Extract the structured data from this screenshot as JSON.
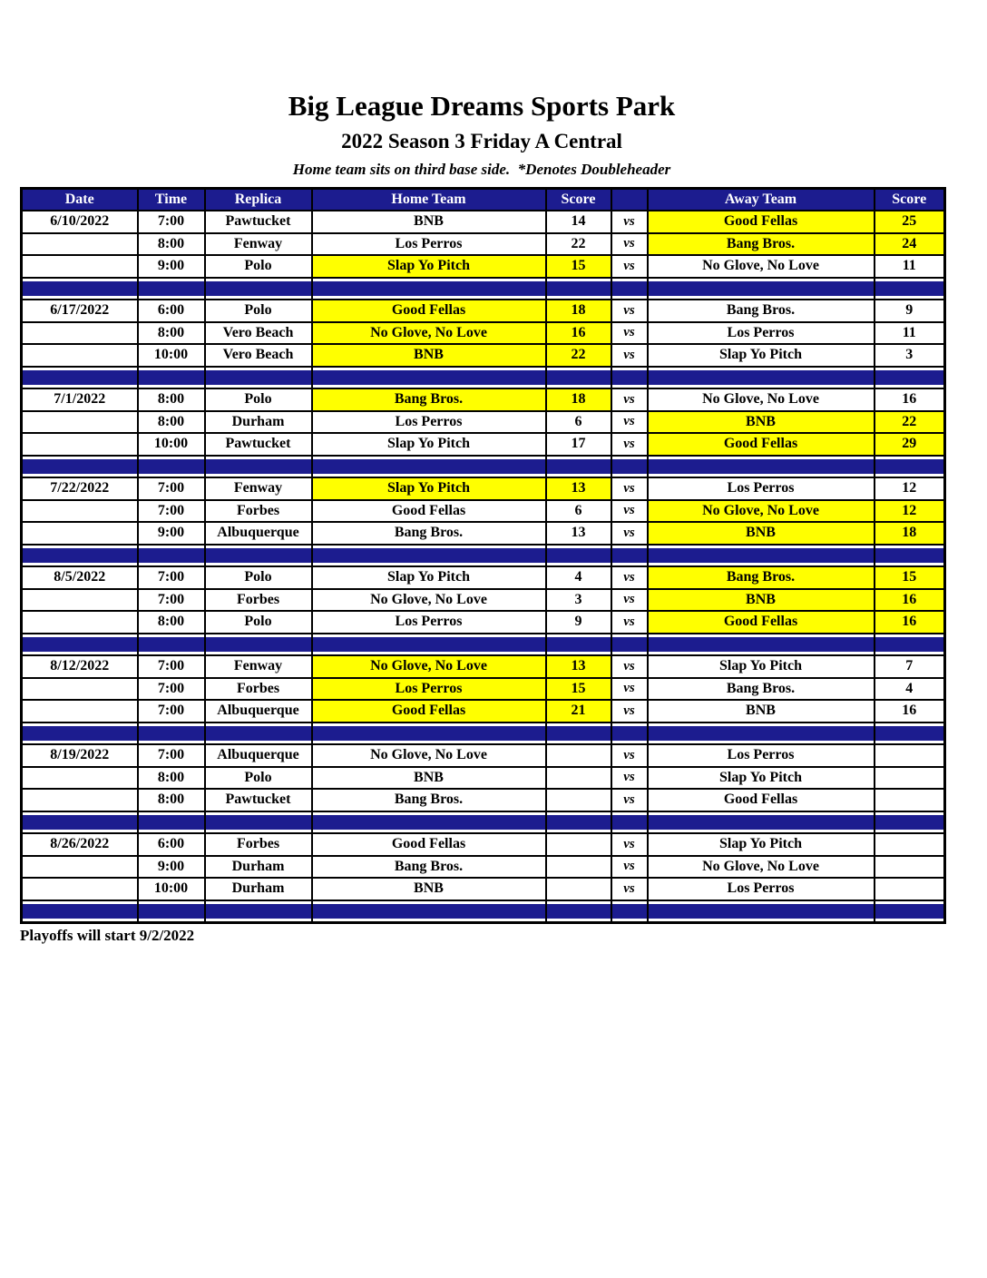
{
  "page": {
    "title": "Big League Dreams Sports Park",
    "subtitle": "2022 Season 3 Friday A Central",
    "note": "Home team sits on third base side.  *Denotes Doubleheader",
    "footer": "Playoffs will start 9/2/2022"
  },
  "colors": {
    "header_navy": "#1c1c8f",
    "winner_highlight": "#ffff00",
    "header_text": "#ffffff",
    "body_text": "#000000"
  },
  "table": {
    "headers": [
      "Date",
      "Time",
      "Replica",
      "Home Team",
      "Score",
      "",
      "Away Team",
      "Score"
    ],
    "vs_label": "vs",
    "groups": [
      {
        "date": "6/10/2022",
        "games": [
          {
            "time": "7:00",
            "replica": "Pawtucket",
            "home": "BNB",
            "home_score": "14",
            "home_win": false,
            "away": "Good Fellas",
            "away_score": "25",
            "away_win": true
          },
          {
            "time": "8:00",
            "replica": "Fenway",
            "home": "Los Perros",
            "home_score": "22",
            "home_win": false,
            "away": "Bang Bros.",
            "away_score": "24",
            "away_win": true
          },
          {
            "time": "9:00",
            "replica": "Polo",
            "home": "Slap Yo Pitch",
            "home_score": "15",
            "home_win": true,
            "away": "No Glove, No Love",
            "away_score": "11",
            "away_win": false
          }
        ]
      },
      {
        "date": "6/17/2022",
        "games": [
          {
            "time": "6:00",
            "replica": "Polo",
            "home": "Good Fellas",
            "home_score": "18",
            "home_win": true,
            "away": "Bang Bros.",
            "away_score": "9",
            "away_win": false
          },
          {
            "time": "8:00",
            "replica": "Vero Beach",
            "home": "No Glove, No Love",
            "home_score": "16",
            "home_win": true,
            "away": "Los Perros",
            "away_score": "11",
            "away_win": false
          },
          {
            "time": "10:00",
            "replica": "Vero Beach",
            "home": "BNB",
            "home_score": "22",
            "home_win": true,
            "away": "Slap Yo Pitch",
            "away_score": "3",
            "away_win": false
          }
        ]
      },
      {
        "date": "7/1/2022",
        "games": [
          {
            "time": "8:00",
            "replica": "Polo",
            "home": "Bang Bros.",
            "home_score": "18",
            "home_win": true,
            "away": "No Glove, No Love",
            "away_score": "16",
            "away_win": false
          },
          {
            "time": "8:00",
            "replica": "Durham",
            "home": "Los Perros",
            "home_score": "6",
            "home_win": false,
            "away": "BNB",
            "away_score": "22",
            "away_win": true
          },
          {
            "time": "10:00",
            "replica": "Pawtucket",
            "home": "Slap Yo Pitch",
            "home_score": "17",
            "home_win": false,
            "away": "Good Fellas",
            "away_score": "29",
            "away_win": true
          }
        ]
      },
      {
        "date": "7/22/2022",
        "games": [
          {
            "time": "7:00",
            "replica": "Fenway",
            "home": "Slap Yo Pitch",
            "home_score": "13",
            "home_win": true,
            "away": "Los Perros",
            "away_score": "12",
            "away_win": false
          },
          {
            "time": "7:00",
            "replica": "Forbes",
            "home": "Good Fellas",
            "home_score": "6",
            "home_win": false,
            "away": "No Glove, No Love",
            "away_score": "12",
            "away_win": true
          },
          {
            "time": "9:00",
            "replica": "Albuquerque",
            "home": "Bang Bros.",
            "home_score": "13",
            "home_win": false,
            "away": "BNB",
            "away_score": "18",
            "away_win": true
          }
        ]
      },
      {
        "date": "8/5/2022",
        "games": [
          {
            "time": "7:00",
            "replica": "Polo",
            "home": "Slap Yo Pitch",
            "home_score": "4",
            "home_win": false,
            "away": "Bang Bros.",
            "away_score": "15",
            "away_win": true
          },
          {
            "time": "7:00",
            "replica": "Forbes",
            "home": "No Glove, No Love",
            "home_score": "3",
            "home_win": false,
            "away": "BNB",
            "away_score": "16",
            "away_win": true
          },
          {
            "time": "8:00",
            "replica": "Polo",
            "home": "Los Perros",
            "home_score": "9",
            "home_win": false,
            "away": "Good Fellas",
            "away_score": "16",
            "away_win": true
          }
        ]
      },
      {
        "date": "8/12/2022",
        "games": [
          {
            "time": "7:00",
            "replica": "Fenway",
            "home": "No Glove, No Love",
            "home_score": "13",
            "home_win": true,
            "away": "Slap Yo Pitch",
            "away_score": "7",
            "away_win": false
          },
          {
            "time": "7:00",
            "replica": "Forbes",
            "home": "Los Perros",
            "home_score": "15",
            "home_win": true,
            "away": "Bang Bros.",
            "away_score": "4",
            "away_win": false
          },
          {
            "time": "7:00",
            "replica": "Albuquerque",
            "home": "Good Fellas",
            "home_score": "21",
            "home_win": true,
            "away": "BNB",
            "away_score": "16",
            "away_win": false
          }
        ]
      },
      {
        "date": "8/19/2022",
        "games": [
          {
            "time": "7:00",
            "replica": "Albuquerque",
            "home": "No Glove, No Love",
            "home_score": "",
            "home_win": false,
            "away": "Los Perros",
            "away_score": "",
            "away_win": false
          },
          {
            "time": "8:00",
            "replica": "Polo",
            "home": "BNB",
            "home_score": "",
            "home_win": false,
            "away": "Slap Yo Pitch",
            "away_score": "",
            "away_win": false
          },
          {
            "time": "8:00",
            "replica": "Pawtucket",
            "home": "Bang Bros.",
            "home_score": "",
            "home_win": false,
            "away": "Good Fellas",
            "away_score": "",
            "away_win": false
          }
        ]
      },
      {
        "date": "8/26/2022",
        "games": [
          {
            "time": "6:00",
            "replica": "Forbes",
            "home": "Good Fellas",
            "home_score": "",
            "home_win": false,
            "away": "Slap Yo Pitch",
            "away_score": "",
            "away_win": false
          },
          {
            "time": "9:00",
            "replica": "Durham",
            "home": "Bang Bros.",
            "home_score": "",
            "home_win": false,
            "away": "No Glove, No Love",
            "away_score": "",
            "away_win": false
          },
          {
            "time": "10:00",
            "replica": "Durham",
            "home": "BNB",
            "home_score": "",
            "home_win": false,
            "away": "Los Perros",
            "away_score": "",
            "away_win": false
          }
        ]
      }
    ]
  }
}
